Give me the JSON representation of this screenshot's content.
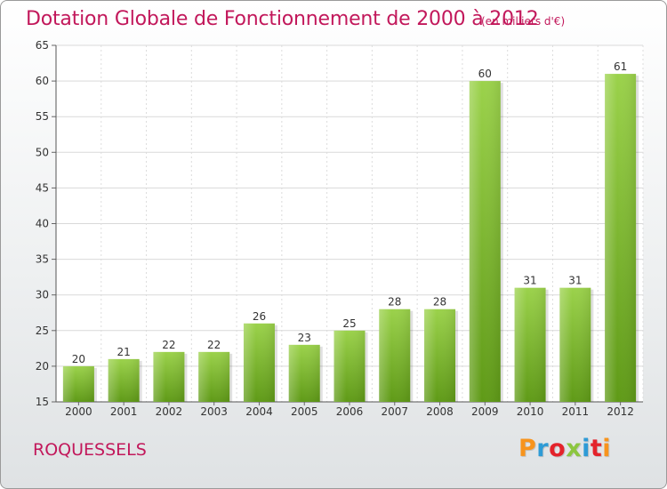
{
  "chart_data": {
    "type": "bar",
    "title": "Dotation Globale de Fonctionnement de 2000 à 2012",
    "subtitle": "(en milliers d'€)",
    "categories": [
      "2000",
      "2001",
      "2002",
      "2003",
      "2004",
      "2005",
      "2006",
      "2007",
      "2008",
      "2009",
      "2010",
      "2011",
      "2012"
    ],
    "values": [
      20,
      21,
      22,
      22,
      26,
      23,
      25,
      28,
      28,
      60,
      31,
      31,
      61
    ],
    "ylim": [
      15,
      65
    ],
    "yticks": [
      15,
      20,
      25,
      30,
      35,
      40,
      45,
      50,
      55,
      60,
      65
    ],
    "grid": true,
    "bar_color": "#7cb82f",
    "xlabel": "",
    "ylabel": ""
  },
  "commune": "ROQUESSELS",
  "logo": {
    "text": "Proxiti",
    "colors": [
      "#f7941d",
      "#2e9bd6",
      "#e4232b",
      "#8cc63f",
      "#2e9bd6",
      "#e4232b",
      "#f7941d"
    ]
  }
}
